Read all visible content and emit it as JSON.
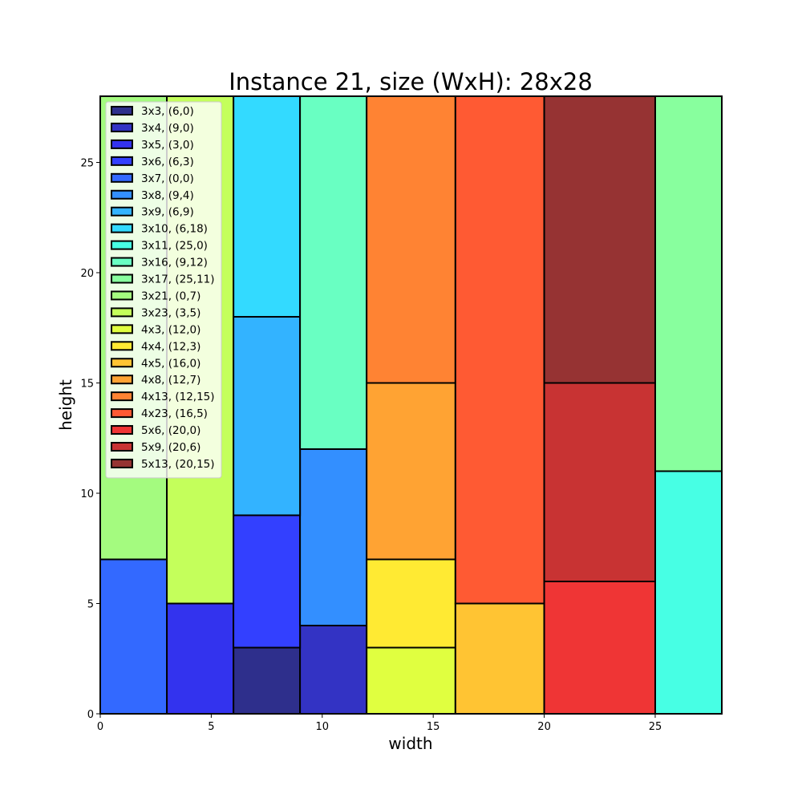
{
  "chart_data": {
    "type": "bar",
    "subtype": "rectangle-packing",
    "title": "Instance 21, size (WxH): 28x28",
    "xlabel": "width",
    "ylabel": "height",
    "xlim": [
      0,
      28
    ],
    "ylim": [
      0,
      28
    ],
    "xticks": [
      0,
      5,
      10,
      15,
      20,
      25
    ],
    "yticks": [
      0,
      5,
      10,
      15,
      20,
      25
    ],
    "grid": false,
    "legend_position": "top-left",
    "rectangles": [
      {
        "label": "3x3, (6,0)",
        "w": 3,
        "h": 3,
        "x": 6,
        "y": 0,
        "color": "#2e2f8c"
      },
      {
        "label": "3x4, (9,0)",
        "w": 3,
        "h": 4,
        "x": 9,
        "y": 0,
        "color": "#3333c4"
      },
      {
        "label": "3x5, (3,0)",
        "w": 3,
        "h": 5,
        "x": 3,
        "y": 0,
        "color": "#3333ee"
      },
      {
        "label": "3x6, (6,3)",
        "w": 3,
        "h": 6,
        "x": 6,
        "y": 3,
        "color": "#3340ff"
      },
      {
        "label": "3x7, (0,0)",
        "w": 3,
        "h": 7,
        "x": 0,
        "y": 0,
        "color": "#3369ff"
      },
      {
        "label": "3x8, (9,4)",
        "w": 3,
        "h": 8,
        "x": 9,
        "y": 4,
        "color": "#338fff"
      },
      {
        "label": "3x9, (6,9)",
        "w": 3,
        "h": 9,
        "x": 6,
        "y": 9,
        "color": "#33b3ff"
      },
      {
        "label": "3x10, (6,18)",
        "w": 3,
        "h": 10,
        "x": 6,
        "y": 18,
        "color": "#33daff"
      },
      {
        "label": "3x11, (25,0)",
        "w": 3,
        "h": 11,
        "x": 25,
        "y": 0,
        "color": "#47ffe4"
      },
      {
        "label": "3x16, (9,12)",
        "w": 3,
        "h": 16,
        "x": 9,
        "y": 12,
        "color": "#69ffc2"
      },
      {
        "label": "3x17, (25,11)",
        "w": 3,
        "h": 17,
        "x": 25,
        "y": 11,
        "color": "#88ff9e"
      },
      {
        "label": "3x21, (0,7)",
        "w": 3,
        "h": 21,
        "x": 0,
        "y": 7,
        "color": "#a4fb7f"
      },
      {
        "label": "3x23, (3,5)",
        "w": 3,
        "h": 23,
        "x": 3,
        "y": 5,
        "color": "#c4ff5b"
      },
      {
        "label": "4x3, (12,0)",
        "w": 4,
        "h": 3,
        "x": 12,
        "y": 0,
        "color": "#e0ff40"
      },
      {
        "label": "4x4, (12,3)",
        "w": 4,
        "h": 4,
        "x": 12,
        "y": 3,
        "color": "#ffea33"
      },
      {
        "label": "4x5, (16,0)",
        "w": 4,
        "h": 5,
        "x": 16,
        "y": 0,
        "color": "#ffc433"
      },
      {
        "label": "4x8, (12,7)",
        "w": 4,
        "h": 8,
        "x": 12,
        "y": 7,
        "color": "#ffa333"
      },
      {
        "label": "4x13, (12,15)",
        "w": 4,
        "h": 13,
        "x": 12,
        "y": 15,
        "color": "#ff8333"
      },
      {
        "label": "4x23, (16,5)",
        "w": 4,
        "h": 23,
        "x": 16,
        "y": 5,
        "color": "#ff5a33"
      },
      {
        "label": "5x6, (20,0)",
        "w": 5,
        "h": 6,
        "x": 20,
        "y": 0,
        "color": "#ef3535"
      },
      {
        "label": "5x9, (20,6)",
        "w": 5,
        "h": 9,
        "x": 20,
        "y": 6,
        "color": "#c83333"
      },
      {
        "label": "5x13, (20,15)",
        "w": 5,
        "h": 13,
        "x": 20,
        "y": 15,
        "color": "#963333"
      }
    ]
  }
}
